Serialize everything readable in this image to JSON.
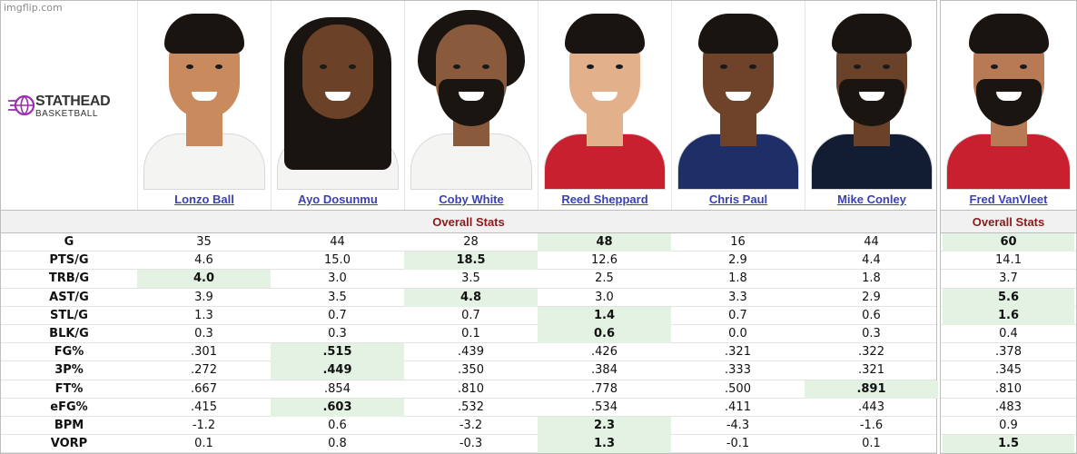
{
  "watermark": "imgflip.com",
  "logo": {
    "line1": "STATHEAD",
    "line2": "BASKETBALL",
    "accent": "#9b2fae"
  },
  "section_title": "Overall Stats",
  "colors": {
    "link": "#3b41b3",
    "section_text": "#8b1a1a",
    "highlight": "#e4f2e4",
    "border": "#bdbdbd"
  },
  "players": [
    {
      "name": "Lonzo Ball",
      "skin": "#c98a5e",
      "jersey": "#f4f4f2",
      "hair": "short"
    },
    {
      "name": "Ayo Dosunmu",
      "skin": "#6b4128",
      "jersey": "#f4f4f2",
      "hair": "locs"
    },
    {
      "name": "Coby White",
      "skin": "#8a5a3c",
      "jersey": "#f4f4f2",
      "hair": "curly"
    },
    {
      "name": "Reed Sheppard",
      "skin": "#e3b08c",
      "jersey": "#c8202f",
      "hair": "short"
    },
    {
      "name": "Chris Paul",
      "skin": "#6e4329",
      "jersey": "#1d2f66",
      "hair": "short"
    },
    {
      "name": "Mike Conley",
      "skin": "#6a4129",
      "jersey": "#121c33",
      "hair": "short"
    }
  ],
  "featured_player": {
    "name": "Fred VanVleet",
    "skin": "#b77a55",
    "jersey": "#c8202f",
    "hair": "short"
  },
  "stats": [
    {
      "label": "G",
      "values": [
        "35",
        "44",
        "28",
        "48",
        "16",
        "44"
      ],
      "hi": 3,
      "featured": "60",
      "featured_hi": true
    },
    {
      "label": "PTS/G",
      "values": [
        "4.6",
        "15.0",
        "18.5",
        "12.6",
        "2.9",
        "4.4"
      ],
      "hi": 2,
      "featured": "14.1",
      "featured_hi": false
    },
    {
      "label": "TRB/G",
      "values": [
        "4.0",
        "3.0",
        "3.5",
        "2.5",
        "1.8",
        "1.8"
      ],
      "hi": 0,
      "featured": "3.7",
      "featured_hi": false
    },
    {
      "label": "AST/G",
      "values": [
        "3.9",
        "3.5",
        "4.8",
        "3.0",
        "3.3",
        "2.9"
      ],
      "hi": 2,
      "featured": "5.6",
      "featured_hi": true
    },
    {
      "label": "STL/G",
      "values": [
        "1.3",
        "0.7",
        "0.7",
        "1.4",
        "0.7",
        "0.6"
      ],
      "hi": 3,
      "featured": "1.6",
      "featured_hi": true
    },
    {
      "label": "BLK/G",
      "values": [
        "0.3",
        "0.3",
        "0.1",
        "0.6",
        "0.0",
        "0.3"
      ],
      "hi": 3,
      "featured": "0.4",
      "featured_hi": false
    },
    {
      "label": "FG%",
      "values": [
        ".301",
        ".515",
        ".439",
        ".426",
        ".321",
        ".322"
      ],
      "hi": 1,
      "featured": ".378",
      "featured_hi": false
    },
    {
      "label": "3P%",
      "values": [
        ".272",
        ".449",
        ".350",
        ".384",
        ".333",
        ".321"
      ],
      "hi": 1,
      "featured": ".345",
      "featured_hi": false
    },
    {
      "label": "FT%",
      "values": [
        ".667",
        ".854",
        ".810",
        ".778",
        ".500",
        ".891"
      ],
      "hi": 5,
      "featured": ".810",
      "featured_hi": false
    },
    {
      "label": "eFG%",
      "values": [
        ".415",
        ".603",
        ".532",
        ".534",
        ".411",
        ".443"
      ],
      "hi": 1,
      "featured": ".483",
      "featured_hi": false
    },
    {
      "label": "BPM",
      "values": [
        "-1.2",
        "0.6",
        "-3.2",
        "2.3",
        "-4.3",
        "-1.6"
      ],
      "hi": 3,
      "featured": "0.9",
      "featured_hi": false
    },
    {
      "label": "VORP",
      "values": [
        "0.1",
        "0.8",
        "-0.3",
        "1.3",
        "-0.1",
        "0.1"
      ],
      "hi": 3,
      "featured": "1.5",
      "featured_hi": true
    }
  ]
}
